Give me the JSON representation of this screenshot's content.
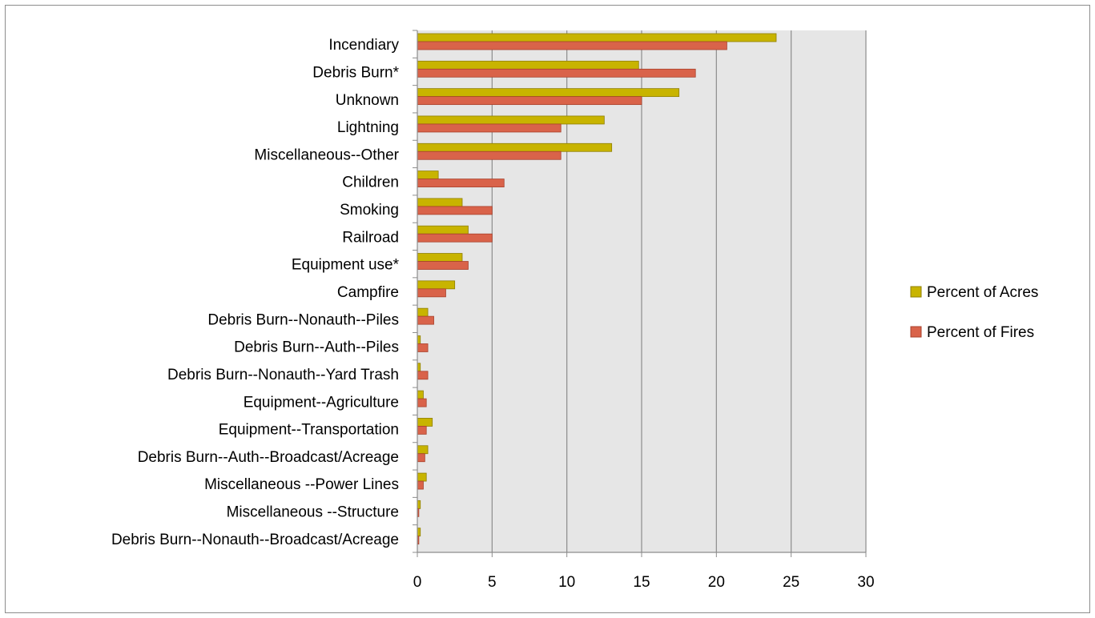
{
  "chart_data": {
    "type": "bar",
    "orientation": "horizontal",
    "categories": [
      "Incendiary",
      "Debris Burn*",
      "Unknown",
      "Lightning",
      "Miscellaneous--Other",
      "Children",
      "Smoking",
      "Railroad",
      "Equipment use*",
      "Campfire",
      "Debris Burn--Nonauth--Piles",
      "Debris Burn--Auth--Piles",
      "Debris Burn--Nonauth--Yard Trash",
      "Equipment--Agriculture",
      "Equipment--Transportation",
      "Debris Burn--Auth--Broadcast/Acreage",
      "Miscellaneous --Power Lines",
      "Miscellaneous --Structure",
      "Debris Burn--Nonauth--Broadcast/Acreage"
    ],
    "series": [
      {
        "name": "Percent of Acres",
        "color": "#c8b400",
        "values": [
          24.0,
          14.8,
          17.5,
          12.5,
          13.0,
          1.4,
          3.0,
          3.4,
          3.0,
          2.5,
          0.7,
          0.2,
          0.2,
          0.4,
          1.0,
          0.7,
          0.6,
          0.2,
          0.2
        ]
      },
      {
        "name": "Percent of Fires",
        "color": "#d9634a",
        "values": [
          20.7,
          18.6,
          15.0,
          9.6,
          9.6,
          5.8,
          5.0,
          5.0,
          3.4,
          1.9,
          1.1,
          0.7,
          0.7,
          0.6,
          0.6,
          0.5,
          0.4,
          0.1,
          0.1
        ]
      }
    ],
    "xaxis": {
      "min": 0,
      "max": 30,
      "ticks": [
        0,
        5,
        10,
        15,
        20,
        25,
        30
      ],
      "tick_labels": [
        "0",
        "5",
        "10",
        "15",
        "20",
        "25",
        "30"
      ]
    },
    "title": "",
    "xlabel": "",
    "ylabel": "",
    "grid": true,
    "plot_background": "#e6e6e6",
    "legend": {
      "placement": "right",
      "entries": [
        "Percent of Acres",
        "Percent of Fires"
      ]
    }
  }
}
